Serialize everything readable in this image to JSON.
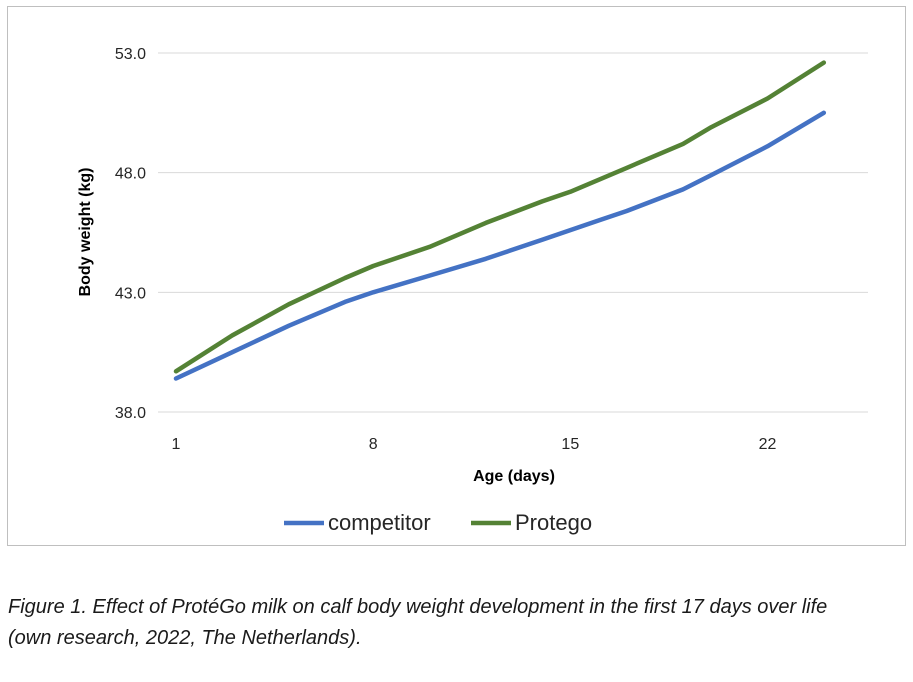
{
  "chart_data": {
    "type": "line",
    "title": "",
    "xlabel": "Age (days)",
    "ylabel": "Body weight (kg)",
    "xlim": [
      1,
      25
    ],
    "ylim": [
      38.0,
      53.0
    ],
    "x_ticks": [
      1,
      8,
      15,
      22
    ],
    "y_ticks": [
      "38.0",
      "43.0",
      "48.0",
      "53.0"
    ],
    "grid": "horizontal",
    "legend": "bottom",
    "series": [
      {
        "name": "competitor",
        "color": "#4472c4",
        "points": [
          [
            1,
            39.4
          ],
          [
            3,
            40.5
          ],
          [
            5,
            41.6
          ],
          [
            7,
            42.6
          ],
          [
            8,
            43.0
          ],
          [
            10,
            43.7
          ],
          [
            12,
            44.4
          ],
          [
            14,
            45.2
          ],
          [
            16,
            46.0
          ],
          [
            17,
            46.4
          ],
          [
            19,
            47.3
          ],
          [
            20,
            47.9
          ],
          [
            22,
            49.1
          ],
          [
            24,
            50.5
          ]
        ]
      },
      {
        "name": "Protego",
        "color": "#548235",
        "points": [
          [
            1,
            39.7
          ],
          [
            3,
            41.2
          ],
          [
            5,
            42.5
          ],
          [
            7,
            43.6
          ],
          [
            8,
            44.1
          ],
          [
            10,
            44.9
          ],
          [
            12,
            45.9
          ],
          [
            14,
            46.8
          ],
          [
            15,
            47.2
          ],
          [
            17,
            48.2
          ],
          [
            19,
            49.2
          ],
          [
            20,
            49.9
          ],
          [
            22,
            51.1
          ],
          [
            24,
            52.6
          ]
        ]
      }
    ]
  },
  "caption": {
    "line1": "Figure 1. Effect of ProtéGo milk on calf body weight development in the first 17 days over life",
    "line2": "(own research, 2022, The Netherlands)."
  }
}
